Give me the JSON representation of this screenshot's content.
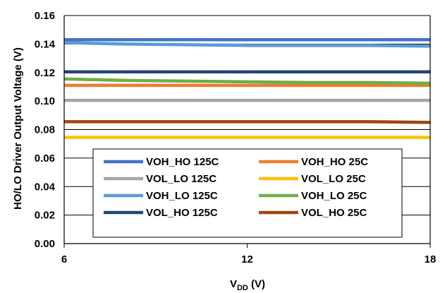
{
  "chart_data": {
    "type": "line",
    "title": "",
    "xlabel_main": "V",
    "xlabel_sub": "DD",
    "xlabel_unit": " (V)",
    "ylabel": "HO/LO Driver Output Voltage (V)",
    "xlim": [
      6,
      18
    ],
    "ylim": [
      0,
      0.16
    ],
    "x_ticks": [
      "6",
      "12",
      "18"
    ],
    "x_tick_values": [
      6,
      12,
      18
    ],
    "y_ticks": [
      "0.00",
      "0.02",
      "0.04",
      "0.06",
      "0.08",
      "0.10",
      "0.12",
      "0.14",
      "0.16"
    ],
    "y_tick_values": [
      0,
      0.02,
      0.04,
      0.06,
      0.08,
      0.1,
      0.12,
      0.14,
      0.16
    ],
    "grid": "horizontal",
    "legend_position": "bottom-center",
    "x": [
      6,
      8,
      10,
      12,
      14,
      16,
      18
    ],
    "series": [
      {
        "name": "VOH_HO 125C",
        "color": "#4472C4",
        "values": [
          0.143,
          0.143,
          0.143,
          0.143,
          0.143,
          0.143,
          0.143
        ]
      },
      {
        "name": "VOH_HO 25C",
        "color": "#ED7D31",
        "values": [
          0.111,
          0.111,
          0.111,
          0.111,
          0.111,
          0.111,
          0.111
        ]
      },
      {
        "name": "VOL_LO 125C",
        "color": "#A5A5A5",
        "values": [
          0.1005,
          0.1005,
          0.1005,
          0.1005,
          0.1005,
          0.1005,
          0.1005
        ]
      },
      {
        "name": "VOL_LO 25C",
        "color": "#FFC000",
        "values": [
          0.0745,
          0.0745,
          0.0745,
          0.0745,
          0.0745,
          0.0745,
          0.0745
        ]
      },
      {
        "name": "VOH_LO 125C",
        "color": "#5B9BD5",
        "values": [
          0.141,
          0.14,
          0.1395,
          0.139,
          0.139,
          0.139,
          0.1385
        ]
      },
      {
        "name": "VOH_LO 25C",
        "color": "#70AD47",
        "values": [
          0.1155,
          0.1145,
          0.114,
          0.1135,
          0.113,
          0.113,
          0.1125
        ]
      },
      {
        "name": "VOL_HO 125C",
        "color": "#264478",
        "values": [
          0.1205,
          0.1205,
          0.1205,
          0.1205,
          0.1205,
          0.1205,
          0.1205
        ]
      },
      {
        "name": "VOL_HO 25C",
        "color": "#9E480E",
        "values": [
          0.0855,
          0.0855,
          0.0855,
          0.0855,
          0.0855,
          0.0855,
          0.085
        ]
      }
    ]
  }
}
